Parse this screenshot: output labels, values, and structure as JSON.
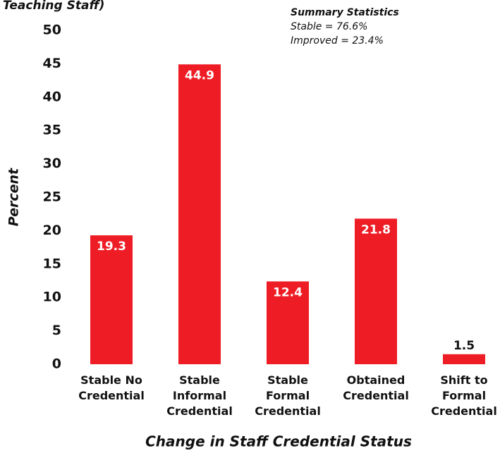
{
  "chart_data": {
    "type": "bar",
    "title": "Teaching Staff)",
    "annotations": [
      "Summary Statistics",
      "Stable = 76.6%",
      "Improved = 23.4%"
    ],
    "categories": [
      "Stable No\nCredential",
      "Stable\nInformal\nCredential",
      "Stable\nFormal\nCredential",
      "Obtained\nCredential",
      "Shift to\nFormal\nCredential"
    ],
    "values": [
      19.3,
      44.9,
      12.4,
      21.8,
      1.5
    ],
    "color": "#ee1c25",
    "ylim": [
      0,
      50
    ],
    "yticks": [
      0,
      5,
      10,
      15,
      20,
      25,
      30,
      35,
      40,
      45,
      50
    ],
    "y_label": "Percent",
    "x_label": "Change in Staff Credential Status",
    "grid": false
  }
}
